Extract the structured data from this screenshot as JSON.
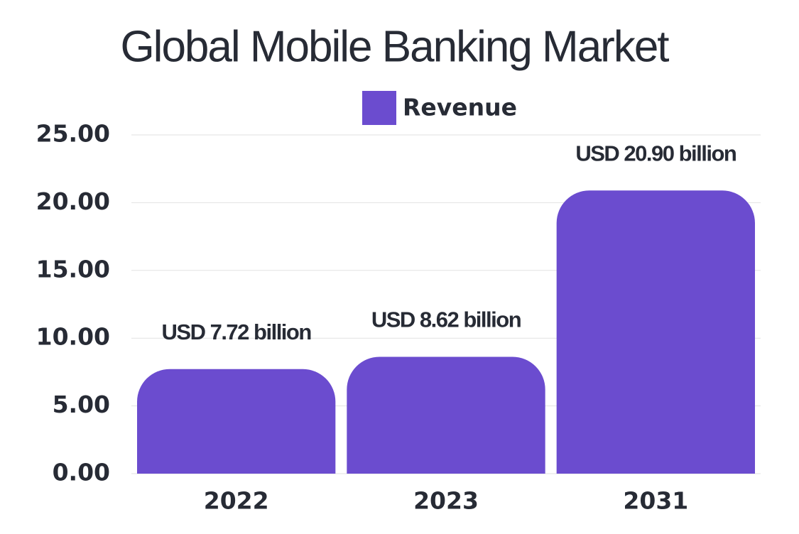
{
  "chart_data": {
    "type": "bar",
    "title": "Global Mobile Banking Market",
    "categories": [
      "2022",
      "2023",
      "2031"
    ],
    "series": [
      {
        "name": "Revenue",
        "color": "#6b4ccf",
        "values": [
          7.72,
          8.62,
          20.9
        ],
        "value_labels": [
          "USD 7.72 billion",
          "USD 8.62 billion",
          "USD 20.90 billion"
        ]
      }
    ],
    "ylim": [
      0,
      25
    ],
    "yticks": [
      {
        "value": 0,
        "label": "0.00"
      },
      {
        "value": 5,
        "label": "5.00"
      },
      {
        "value": 10,
        "label": "10.00"
      },
      {
        "value": 15,
        "label": "15.00"
      },
      {
        "value": 20,
        "label": "20.00"
      },
      {
        "value": 25,
        "label": "25.00"
      }
    ],
    "grid": true,
    "legend": "top"
  }
}
